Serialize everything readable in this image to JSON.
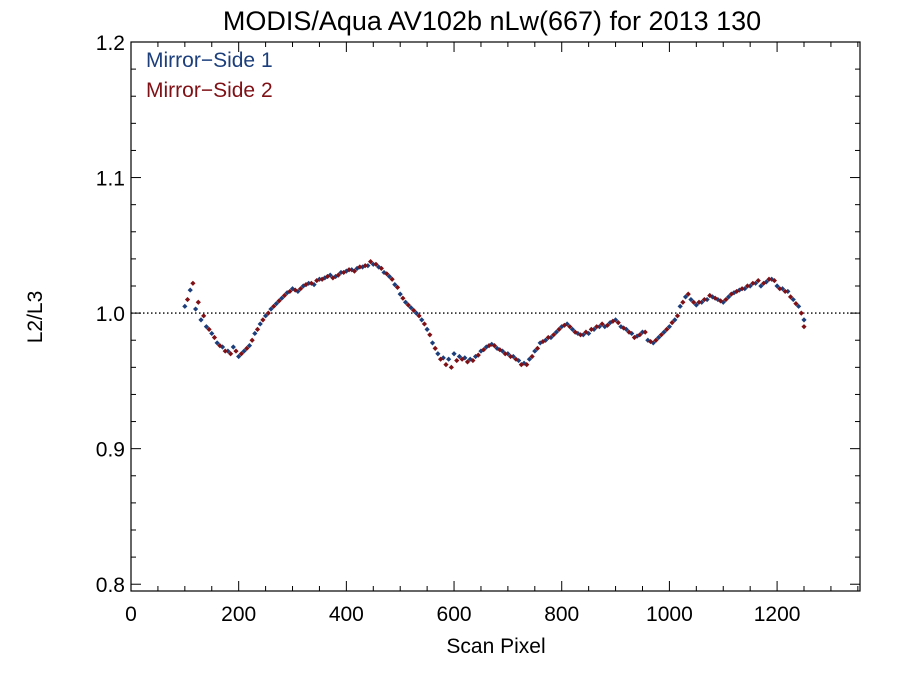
{
  "chart_data": {
    "type": "scatter",
    "title": "MODIS/Aqua AV102b nLw(667) for 2013 130",
    "xlabel": "Scan Pixel",
    "ylabel": "L2/L3",
    "xlim": [
      0,
      1354
    ],
    "ylim": [
      0.795,
      1.2
    ],
    "x_ticks": [
      0,
      200,
      400,
      600,
      800,
      1000,
      1200
    ],
    "x_tick_labels": [
      "0",
      "200",
      "400",
      "600",
      "800",
      "1000",
      "1200"
    ],
    "y_ticks": [
      0.8,
      0.9,
      1.0,
      1.1,
      1.2
    ],
    "y_tick_labels": [
      "0.8",
      "0.9",
      "1.0",
      "1.1",
      "1.2"
    ],
    "reference_line": 1.0,
    "legend_position": "top-left",
    "series": [
      {
        "name": "Mirror−Side 1",
        "color": "#1c3f7c",
        "x": [
          100,
          110,
          120,
          130,
          140,
          150,
          160,
          170,
          180,
          190,
          200,
          210,
          220,
          230,
          240,
          250,
          260,
          270,
          280,
          290,
          300,
          310,
          320,
          330,
          340,
          350,
          360,
          370,
          380,
          390,
          400,
          410,
          420,
          430,
          440,
          450,
          460,
          470,
          480,
          490,
          500,
          510,
          520,
          530,
          540,
          550,
          560,
          570,
          580,
          590,
          600,
          610,
          620,
          630,
          640,
          650,
          660,
          670,
          680,
          690,
          700,
          710,
          720,
          730,
          740,
          750,
          760,
          770,
          780,
          790,
          800,
          810,
          820,
          830,
          840,
          850,
          860,
          870,
          880,
          890,
          900,
          910,
          920,
          930,
          940,
          950,
          960,
          970,
          980,
          990,
          1000,
          1010,
          1020,
          1030,
          1040,
          1050,
          1060,
          1070,
          1080,
          1090,
          1100,
          1110,
          1120,
          1130,
          1140,
          1150,
          1160,
          1170,
          1180,
          1190,
          1200,
          1210,
          1220,
          1230,
          1240,
          1250
        ],
        "y": [
          1.005,
          1.017,
          1.003,
          0.995,
          0.99,
          0.985,
          0.978,
          0.975,
          0.972,
          0.975,
          0.968,
          0.972,
          0.976,
          0.985,
          0.992,
          0.998,
          1.003,
          1.007,
          1.011,
          1.015,
          1.018,
          1.016,
          1.02,
          1.022,
          1.021,
          1.025,
          1.026,
          1.028,
          1.027,
          1.03,
          1.031,
          1.032,
          1.033,
          1.034,
          1.035,
          1.036,
          1.034,
          1.03,
          1.027,
          1.021,
          1.014,
          1.008,
          1.004,
          1.0,
          0.995,
          0.988,
          0.978,
          0.97,
          0.967,
          0.966,
          0.97,
          0.968,
          0.967,
          0.966,
          0.968,
          0.972,
          0.975,
          0.977,
          0.974,
          0.972,
          0.97,
          0.968,
          0.965,
          0.963,
          0.966,
          0.972,
          0.978,
          0.98,
          0.982,
          0.986,
          0.99,
          0.992,
          0.988,
          0.985,
          0.984,
          0.985,
          0.988,
          0.99,
          0.99,
          0.993,
          0.995,
          0.99,
          0.988,
          0.985,
          0.983,
          0.986,
          0.98,
          0.978,
          0.982,
          0.986,
          0.99,
          0.995,
          1.005,
          1.012,
          1.01,
          1.006,
          1.008,
          1.01,
          1.012,
          1.01,
          1.008,
          1.012,
          1.015,
          1.017,
          1.018,
          1.02,
          1.022,
          1.02,
          1.023,
          1.025,
          1.02,
          1.018,
          1.016,
          1.01,
          1.005,
          0.995
        ]
      },
      {
        "name": "Mirror−Side 2",
        "color": "#7f1015",
        "x": [
          105,
          115,
          125,
          135,
          145,
          155,
          165,
          175,
          185,
          195,
          205,
          215,
          225,
          235,
          245,
          255,
          265,
          275,
          285,
          295,
          305,
          315,
          325,
          335,
          345,
          355,
          365,
          375,
          385,
          395,
          405,
          415,
          425,
          435,
          445,
          455,
          465,
          475,
          485,
          495,
          505,
          515,
          525,
          535,
          545,
          555,
          565,
          575,
          585,
          595,
          605,
          615,
          625,
          635,
          645,
          655,
          665,
          675,
          685,
          695,
          705,
          715,
          725,
          735,
          745,
          755,
          765,
          775,
          785,
          795,
          805,
          815,
          825,
          835,
          845,
          855,
          865,
          875,
          885,
          895,
          905,
          915,
          925,
          935,
          945,
          955,
          965,
          975,
          985,
          995,
          1005,
          1015,
          1025,
          1035,
          1045,
          1055,
          1065,
          1075,
          1085,
          1095,
          1105,
          1115,
          1125,
          1135,
          1145,
          1155,
          1165,
          1175,
          1185,
          1195,
          1205,
          1215,
          1225,
          1235,
          1245,
          1250
        ],
        "y": [
          1.01,
          1.022,
          1.008,
          0.998,
          0.988,
          0.982,
          0.976,
          0.972,
          0.97,
          0.972,
          0.97,
          0.974,
          0.98,
          0.988,
          0.995,
          1.0,
          1.005,
          1.009,
          1.013,
          1.016,
          1.017,
          1.018,
          1.021,
          1.022,
          1.024,
          1.025,
          1.027,
          1.026,
          1.028,
          1.03,
          1.032,
          1.031,
          1.034,
          1.035,
          1.038,
          1.036,
          1.033,
          1.029,
          1.025,
          1.019,
          1.011,
          1.006,
          1.002,
          0.998,
          0.992,
          0.984,
          0.974,
          0.966,
          0.962,
          0.96,
          0.965,
          0.966,
          0.964,
          0.965,
          0.969,
          0.973,
          0.976,
          0.976,
          0.973,
          0.97,
          0.968,
          0.966,
          0.962,
          0.962,
          0.968,
          0.974,
          0.979,
          0.982,
          0.984,
          0.988,
          0.991,
          0.99,
          0.986,
          0.984,
          0.986,
          0.988,
          0.99,
          0.992,
          0.991,
          0.994,
          0.993,
          0.989,
          0.986,
          0.982,
          0.984,
          0.986,
          0.979,
          0.98,
          0.984,
          0.988,
          0.993,
          0.998,
          1.008,
          1.014,
          1.008,
          1.008,
          1.01,
          1.013,
          1.011,
          1.009,
          1.01,
          1.014,
          1.016,
          1.018,
          1.02,
          1.022,
          1.024,
          1.022,
          1.025,
          1.024,
          1.018,
          1.016,
          1.012,
          1.007,
          1.0,
          0.99
        ]
      }
    ]
  }
}
